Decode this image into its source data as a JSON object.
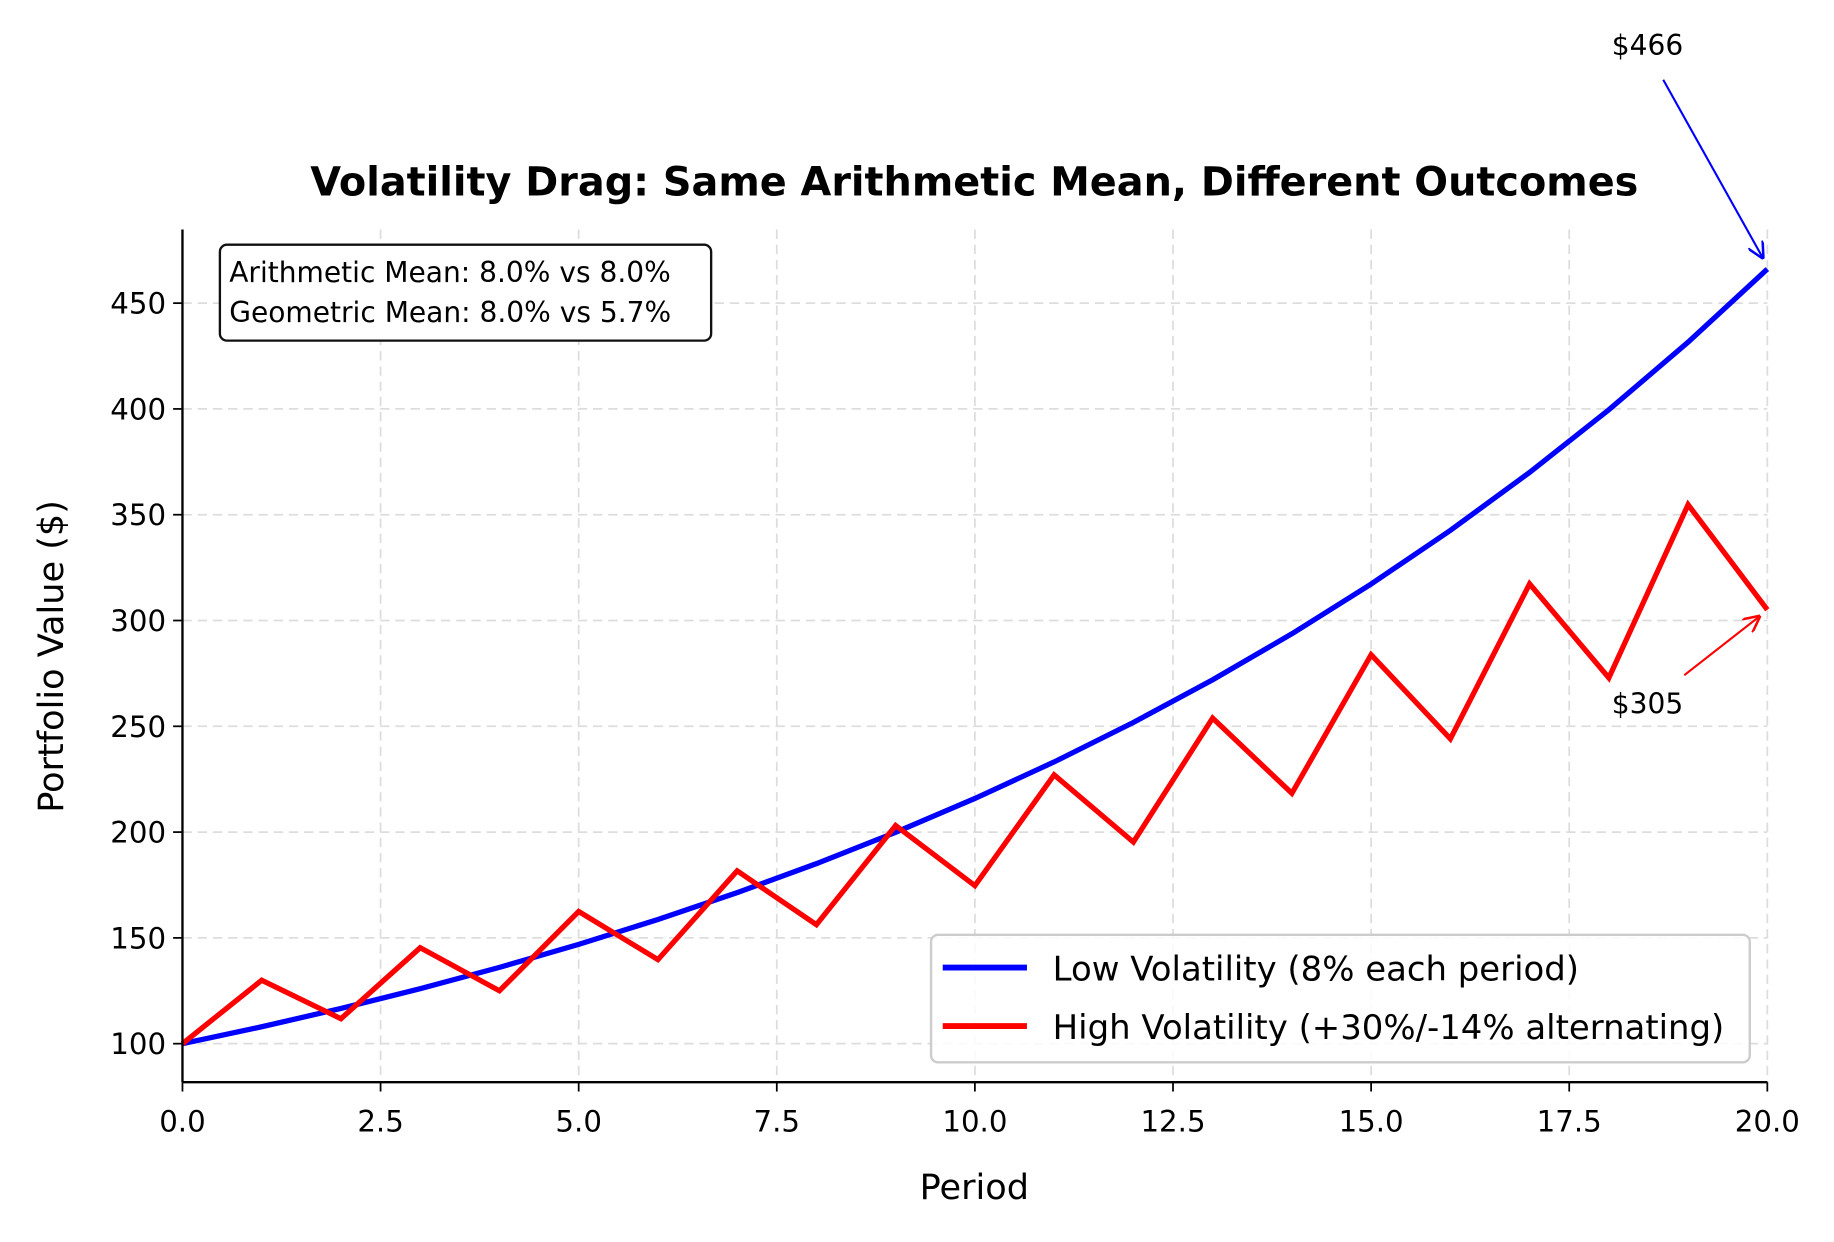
{
  "chart_data": {
    "type": "line",
    "title": "Volatility Drag: Same Arithmetic Mean, Different Outcomes",
    "xlabel": "Period",
    "ylabel": "Portfolio Value ($)",
    "xlim": [
      0,
      20
    ],
    "ylim": [
      81.8,
      484.8
    ],
    "grid": true,
    "legend_placement": "lower-right",
    "x_ticks": [
      "0.0",
      "2.5",
      "5.0",
      "7.5",
      "10.0",
      "12.5",
      "15.0",
      "17.5",
      "20.0"
    ],
    "y_ticks": [
      "100",
      "150",
      "200",
      "250",
      "300",
      "350",
      "400",
      "450"
    ],
    "x": [
      0,
      1,
      2,
      3,
      4,
      5,
      6,
      7,
      8,
      9,
      10,
      11,
      12,
      13,
      14,
      15,
      16,
      17,
      18,
      19,
      20
    ],
    "series": [
      {
        "name": "Low Volatility (8% each period)",
        "color": "#0000ff",
        "values": [
          100,
          108,
          116.64,
          125.97,
          136.05,
          146.93,
          158.69,
          171.38,
          185.09,
          199.9,
          215.89,
          233.16,
          251.82,
          271.96,
          293.72,
          317.22,
          342.59,
          370.0,
          399.6,
          431.57,
          466.1
        ]
      },
      {
        "name": "High Volatility (+30%/-14% alternating)",
        "color": "#ff0000",
        "values": [
          100,
          130,
          111.8,
          145.34,
          124.99,
          162.49,
          139.74,
          181.67,
          156.23,
          203.1,
          174.67,
          227.07,
          195.28,
          253.86,
          218.32,
          283.82,
          244.08,
          317.31,
          272.89,
          354.75,
          305.09
        ]
      }
    ],
    "annotations": [
      {
        "text": "$466",
        "x": 20,
        "y": 466.1,
        "color": "#0000ff"
      },
      {
        "text": "$305",
        "x": 20,
        "y": 305.09,
        "color": "#ff0000"
      }
    ],
    "textbox": [
      "Arithmetic Mean: 8.0% vs 8.0%",
      "Geometric Mean: 8.0% vs 5.7%"
    ]
  }
}
